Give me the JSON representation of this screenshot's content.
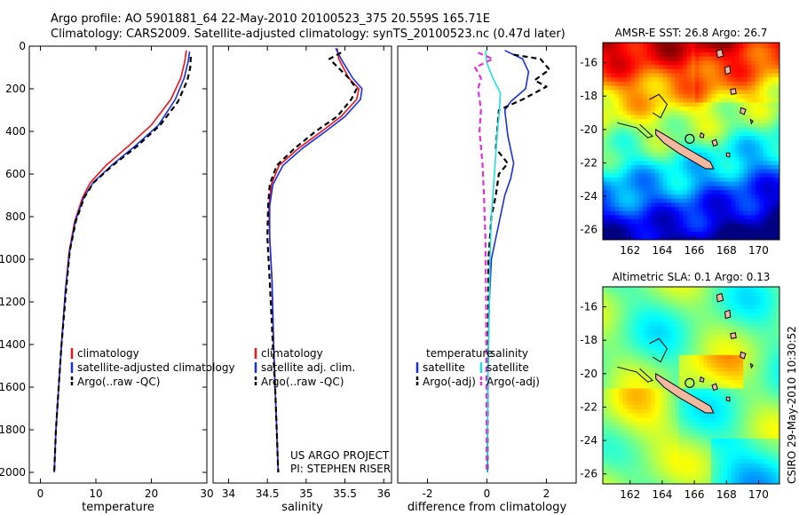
{
  "header": {
    "line1": "Argo profile: AO 5901881_64 22-May-2010 20100523_375 20.559S 165.71E",
    "line2": "Climatology: CARS2009. Satellite-adjusted climatology: synTS_20100523.nc (0.47d later)"
  },
  "footer": {
    "project": "US ARGO PROJECT",
    "pi": "PI: STEPHEN RISER",
    "stamp": "CSIRO 29-May-2010 10:30:52"
  },
  "colors": {
    "red": "#e8141e",
    "blue": "#1a2ee0",
    "black": "#000000",
    "cyan": "#22dde0",
    "magenta": "#e030d8"
  },
  "chart_data": [
    {
      "type": "line",
      "xlabel": "temperature",
      "ylabel": "",
      "xlim": [
        -2,
        30
      ],
      "ylim": [
        2050,
        0
      ],
      "xticks": [
        0,
        10,
        20,
        30
      ],
      "yticks": [
        0,
        200,
        400,
        600,
        800,
        1000,
        1200,
        1400,
        1600,
        1800,
        2000
      ],
      "legend": [
        "climatology",
        "satellite-adjusted climatology",
        "Argo(..raw -QC)"
      ],
      "series": [
        {
          "name": "climatology",
          "color": "#e8141e",
          "dash": "",
          "x": [
            26.3,
            26.0,
            25.3,
            23.5,
            20.0,
            15.8,
            11.8,
            9.0,
            7.6,
            6.2,
            5.2,
            4.5,
            3.8,
            3.3,
            2.8,
            2.5
          ],
          "y": [
            20,
            75,
            150,
            250,
            370,
            470,
            560,
            640,
            710,
            820,
            960,
            1150,
            1400,
            1600,
            1800,
            2000
          ]
        },
        {
          "name": "satellite-adjusted climatology",
          "color": "#1a2ee0",
          "dash": "",
          "x": [
            26.9,
            26.6,
            25.9,
            24.3,
            21.3,
            17.0,
            12.8,
            9.5,
            7.8,
            6.3,
            5.3,
            4.5,
            3.8,
            3.3,
            2.8,
            2.5
          ],
          "y": [
            25,
            75,
            150,
            250,
            370,
            470,
            560,
            640,
            710,
            820,
            960,
            1150,
            1400,
            1600,
            1800,
            2000
          ]
        },
        {
          "name": "Argo(..raw -QC)",
          "color": "#000000",
          "dash": "6,4",
          "x": [
            27.1,
            27.0,
            26.5,
            24.8,
            21.6,
            17.4,
            13.0,
            9.6,
            7.9,
            6.4,
            5.3,
            4.6,
            3.8,
            3.3,
            2.8,
            2.5
          ],
          "y": [
            50,
            100,
            160,
            260,
            370,
            470,
            560,
            640,
            710,
            820,
            960,
            1150,
            1400,
            1600,
            1800,
            2000
          ]
        }
      ]
    },
    {
      "type": "line",
      "xlabel": "salinity",
      "ylabel": "",
      "xlim": [
        33.8,
        36.1
      ],
      "ylim": [
        2050,
        0
      ],
      "xticks": [
        34,
        34.5,
        35,
        35.5,
        36
      ],
      "yticks": [],
      "legend": [
        "climatology",
        "satellite adj. clim.",
        "Argo(..raw -QC)"
      ],
      "series": [
        {
          "name": "climatology",
          "color": "#e8141e",
          "dash": "",
          "x": [
            35.4,
            35.42,
            35.55,
            35.68,
            35.65,
            35.45,
            35.2,
            34.9,
            34.65,
            34.55,
            34.52,
            34.53,
            34.56,
            34.58,
            34.6,
            34.62,
            34.64
          ],
          "y": [
            10,
            60,
            150,
            200,
            250,
            330,
            400,
            480,
            560,
            650,
            750,
            900,
            1100,
            1400,
            1600,
            1800,
            2000
          ]
        },
        {
          "name": "satellite adj. clim.",
          "color": "#1a2ee0",
          "dash": "",
          "x": [
            35.38,
            35.45,
            35.6,
            35.72,
            35.7,
            35.5,
            35.25,
            34.95,
            34.7,
            34.57,
            34.53,
            34.53,
            34.56,
            34.58,
            34.6,
            34.62,
            34.64
          ],
          "y": [
            10,
            60,
            150,
            200,
            250,
            330,
            400,
            480,
            560,
            650,
            750,
            900,
            1100,
            1400,
            1600,
            1800,
            2000
          ]
        },
        {
          "name": "Argo(..raw -QC)",
          "color": "#000000",
          "dash": "6,4",
          "x": [
            35.45,
            35.3,
            35.55,
            35.65,
            35.58,
            35.4,
            35.12,
            34.85,
            34.62,
            34.53,
            34.51,
            34.5,
            34.53,
            34.57,
            34.6,
            34.62,
            34.64
          ],
          "y": [
            30,
            60,
            150,
            200,
            250,
            330,
            400,
            480,
            560,
            650,
            750,
            900,
            1100,
            1400,
            1600,
            1800,
            2000
          ]
        }
      ]
    },
    {
      "type": "line",
      "xlabel": "difference from climatology",
      "ylabel": "",
      "xlim": [
        -3,
        3
      ],
      "ylim": [
        2050,
        0
      ],
      "xticks": [
        -2,
        0,
        2
      ],
      "yticks": [],
      "legend_groups": [
        {
          "title": "temperature",
          "entries": [
            "satellite",
            "Argo(-adj)"
          ]
        },
        {
          "title": "salinity",
          "entries": [
            "satellite",
            "Argo(-adj)"
          ]
        }
      ],
      "series": [
        {
          "name": "temperature satellite",
          "color": "#1a2ee0",
          "dash": "",
          "x": [
            0.6,
            1.2,
            1.4,
            1.3,
            0.8,
            0.6,
            0.7,
            0.9,
            0.8,
            0.6,
            0.45,
            0.3,
            0.15,
            0.08,
            0.05,
            0.03,
            0.02,
            0.02
          ],
          "y": [
            20,
            60,
            120,
            200,
            260,
            300,
            420,
            550,
            620,
            700,
            800,
            900,
            1000,
            1200,
            1400,
            1600,
            1800,
            2000
          ]
        },
        {
          "name": "temperature Argo(-adj)",
          "color": "#000000",
          "dash": "6,4",
          "x": [
            0.9,
            1.8,
            2.1,
            1.6,
            2.0,
            1.2,
            0.4,
            0.3,
            0.7,
            0.4,
            0.3,
            0.15,
            0.05,
            0.05,
            0.03,
            0.02,
            0.02
          ],
          "y": [
            40,
            60,
            110,
            160,
            190,
            250,
            300,
            480,
            550,
            600,
            700,
            800,
            1000,
            1200,
            1500,
            1800,
            2000
          ]
        },
        {
          "name": "salinity satellite",
          "color": "#22dde0",
          "dash": "",
          "x": [
            -0.05,
            0.0,
            0.2,
            0.45,
            0.42,
            0.35,
            0.3,
            0.25,
            0.2,
            0.15,
            0.1,
            0.08,
            0.05,
            0.03,
            0.02,
            0.01
          ],
          "y": [
            20,
            80,
            150,
            220,
            300,
            400,
            500,
            600,
            700,
            800,
            1000,
            1200,
            1400,
            1600,
            1800,
            2000
          ]
        },
        {
          "name": "salinity Argo(-adj)",
          "color": "#e030d8",
          "dash": "6,4",
          "x": [
            -0.3,
            0.2,
            -0.4,
            -0.2,
            -0.3,
            -0.2,
            -0.25,
            -0.15,
            -0.1,
            -0.05,
            -0.03,
            -0.02,
            -0.01,
            -0.01
          ],
          "y": [
            30,
            60,
            100,
            150,
            200,
            300,
            400,
            550,
            700,
            900,
            1200,
            1500,
            1800,
            2000
          ]
        }
      ]
    }
  ],
  "maps": [
    {
      "title": "AMSR-E SST: 26.8 Argo: 26.7",
      "field": "sst",
      "xlim": [
        160.3,
        171.3
      ],
      "ylim": [
        -26.6,
        -14.8
      ],
      "xticks": [
        162,
        164,
        166,
        168,
        170
      ],
      "yticks": [
        -16,
        -18,
        -20,
        -22,
        -24,
        -26
      ],
      "argo_position": {
        "lon": 165.71,
        "lat": -20.559
      }
    },
    {
      "title": "Altimetric SLA: 0.1 Argo: 0.13",
      "field": "sla",
      "xlim": [
        160.3,
        171.3
      ],
      "ylim": [
        -26.6,
        -14.8
      ],
      "xticks": [
        162,
        164,
        166,
        168,
        170
      ],
      "yticks": [
        -16,
        -18,
        -20,
        -22,
        -24,
        -26
      ],
      "argo_position": {
        "lon": 165.71,
        "lat": -20.559
      }
    }
  ]
}
